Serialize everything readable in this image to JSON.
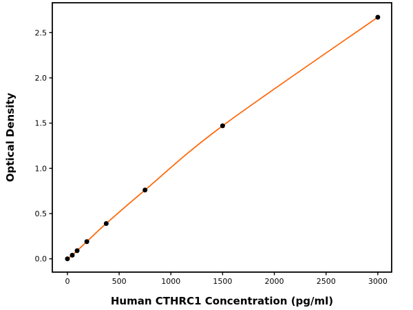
{
  "figure": {
    "background_color": "#ffffff",
    "frame_color": "#000000"
  },
  "chart_data": {
    "type": "scatter",
    "title": "",
    "xlabel": "Human CTHRC1 Concentration (pg/ml)",
    "ylabel": "Optical Density",
    "series": [
      {
        "name": "standard-curve",
        "x": [
          0,
          46.9,
          93.8,
          187.5,
          375,
          750,
          1500,
          3000
        ],
        "y": [
          0.0,
          0.04,
          0.09,
          0.19,
          0.39,
          0.76,
          1.47,
          2.67
        ],
        "marker": "circle",
        "marker_color": "#000000",
        "fit_line": true,
        "fit_line_color": "#fd6a0e"
      }
    ],
    "xlim": [
      -146,
      3134
    ],
    "ylim": [
      -0.147,
      2.83
    ],
    "xticks": {
      "values": [
        0,
        500,
        1000,
        1500,
        2000,
        2500,
        3000
      ],
      "labels": [
        "0",
        "500",
        "1000",
        "1500",
        "2000",
        "2500",
        "3000"
      ]
    },
    "yticks": {
      "values": [
        0.0,
        0.5,
        1.0,
        1.5,
        2.0,
        2.5
      ],
      "labels": [
        "0.0",
        "0.5",
        "1.0",
        "1.5",
        "2.0",
        "2.5"
      ]
    },
    "grid": false,
    "legend": false
  }
}
